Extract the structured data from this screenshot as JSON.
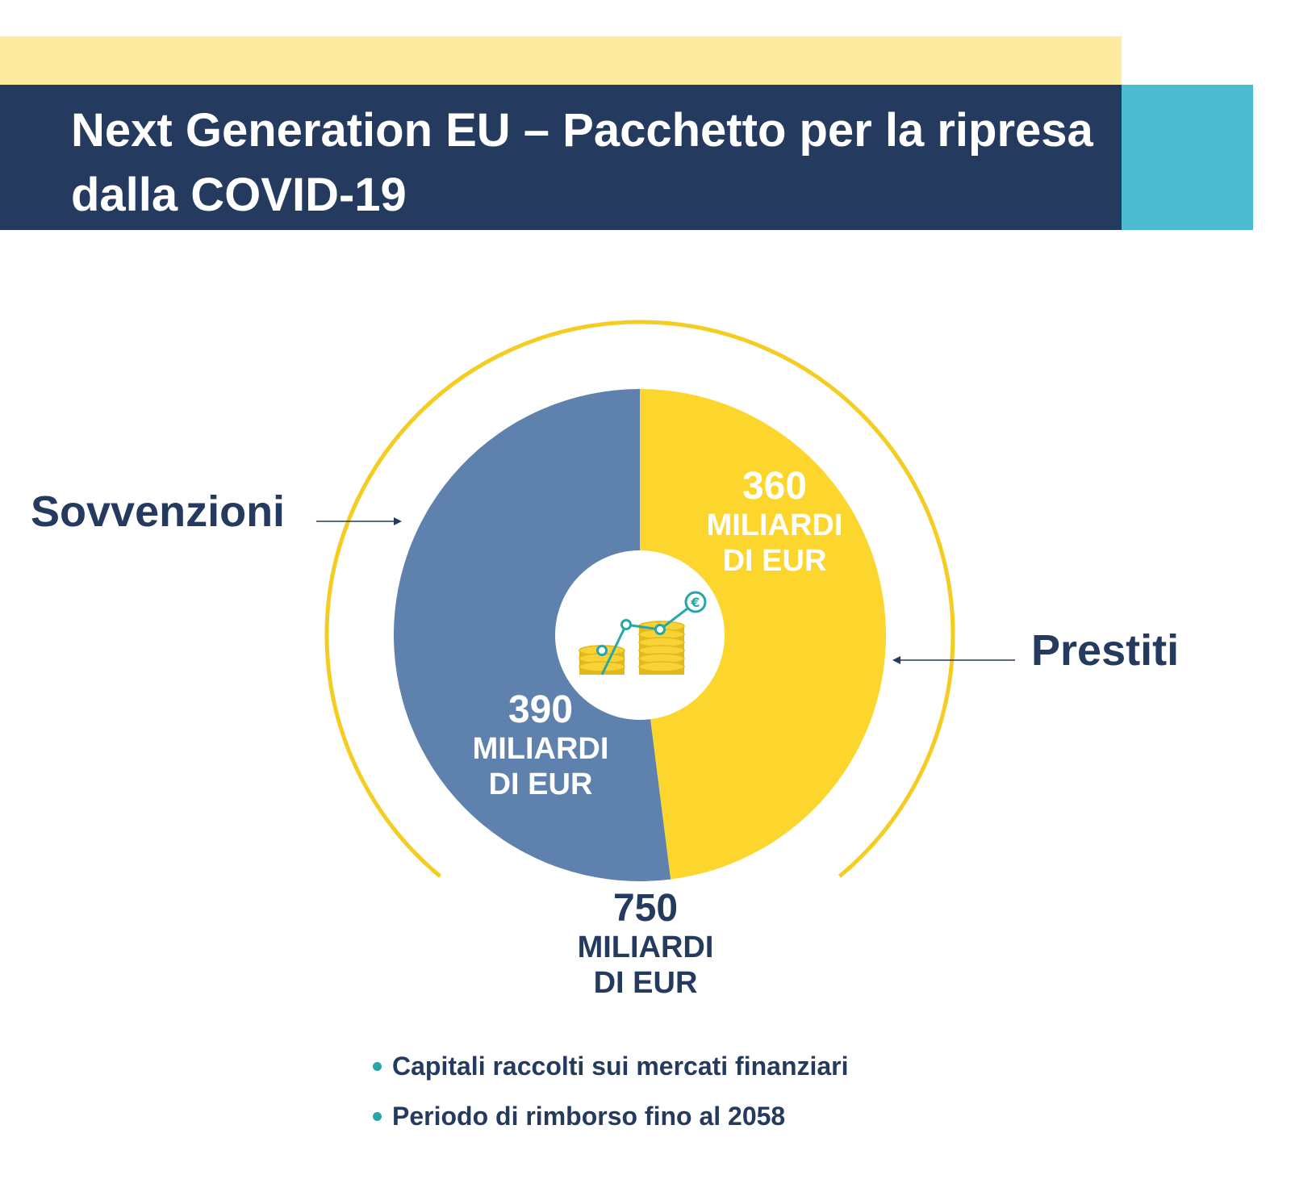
{
  "header": {
    "title": "Next Generation EU – Pacchetto per la ripresa dalla COVID-19"
  },
  "colors": {
    "navy": "#243a5e",
    "grants_blue": "#5f81ad",
    "loans_yellow": "#fcd62d",
    "ring_yellow": "#f5cd22",
    "teal": "#4bbcd0",
    "light_yellow": "#fdeba0"
  },
  "chart_data": {
    "type": "pie",
    "style": "donut",
    "unit": "MILIARDI DI EUR",
    "categories": [
      "Sovvenzioni",
      "Prestiti"
    ],
    "values": [
      390,
      360
    ],
    "value_labels": [
      {
        "number": "390",
        "unit_line1": "MILIARDI",
        "unit_line2": "DI EUR"
      },
      {
        "number": "360",
        "unit_line1": "MILIARDI",
        "unit_line2": "DI EUR"
      }
    ],
    "total": {
      "value": 750,
      "number": "750",
      "unit_line1": "MILIARDI",
      "unit_line2": "DI EUR"
    },
    "center_icon": "coins-growth-euro-icon"
  },
  "notes": [
    "Capitali raccolti sui mercati finanziari",
    "Periodo di rimborso fino al 2058"
  ]
}
